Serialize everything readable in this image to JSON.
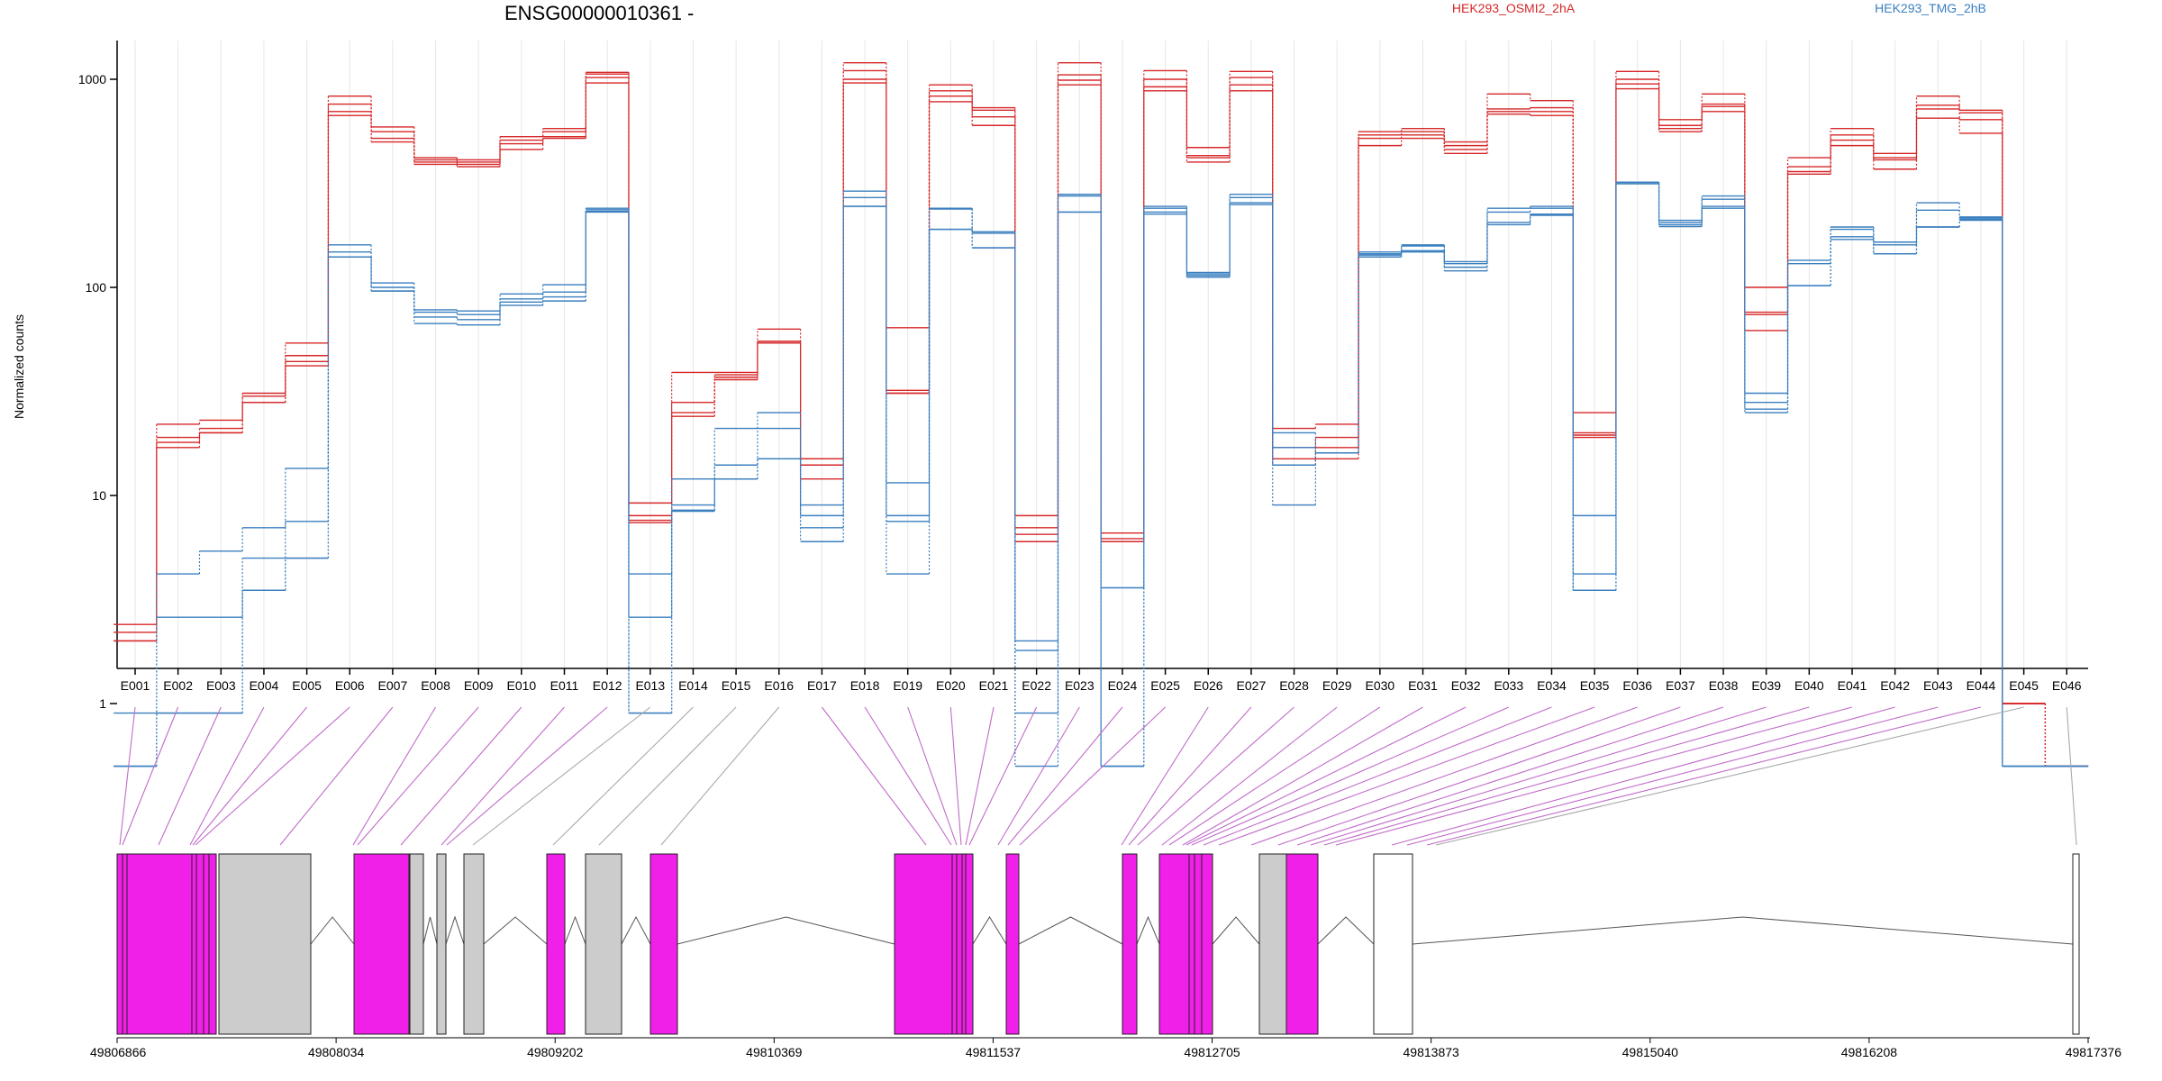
{
  "chart_data": {
    "type": "line",
    "title": "ENSG00000010361 -",
    "ylabel": "Normalized counts",
    "xlabel": "",
    "y_scale": "log",
    "grid": {
      "vertical": true,
      "horizontal": false
    },
    "legend": {
      "placement": "top-right",
      "entries": [
        {
          "name": "HEK293_OSMI2_2hA",
          "color": "#d62728"
        },
        {
          "name": "HEK293_TMG_2hB",
          "color": "#3a7fbf"
        }
      ]
    },
    "y_ticks": [
      {
        "value": 1,
        "label": "1"
      },
      {
        "value": 10,
        "label": "10"
      },
      {
        "value": 100,
        "label": "100"
      },
      {
        "value": 1000,
        "label": "1000"
      }
    ],
    "categories": [
      "E001",
      "E002",
      "E003",
      "E004",
      "E005",
      "E006",
      "E007",
      "E008",
      "E009",
      "E010",
      "E011",
      "E012",
      "E013",
      "E014",
      "E015",
      "E016",
      "E017",
      "E018",
      "E019",
      "E020",
      "E021",
      "E022",
      "E023",
      "E024",
      "E025",
      "E026",
      "E027",
      "E028",
      "E029",
      "E030",
      "E031",
      "E032",
      "E033",
      "E034",
      "E035",
      "E036",
      "E037",
      "E038",
      "E039",
      "E040",
      "E041",
      "E042",
      "E043",
      "E044",
      "E045",
      "E046"
    ],
    "series": [
      {
        "group": 0,
        "values": [
          2.4,
          22,
          23,
          31,
          54,
          830,
          590,
          420,
          410,
          530,
          580,
          1080,
          9.2,
          39,
          39,
          63,
          15,
          1200,
          64,
          940,
          730,
          8,
          1200,
          6.6,
          1100,
          470,
          1090,
          21,
          22,
          560,
          580,
          500,
          850,
          790,
          25,
          1090,
          640,
          850,
          100,
          420,
          580,
          440,
          830,
          710,
          1.0,
          0.5
        ]
      },
      {
        "group": 0,
        "values": [
          2.2,
          19,
          21,
          30,
          47,
          760,
          560,
          410,
          400,
          510,
          560,
          1060,
          8.0,
          28,
          38,
          55,
          15,
          1100,
          32,
          880,
          710,
          7,
          1050,
          6.2,
          1000,
          430,
          1020,
          17,
          19,
          540,
          560,
          480,
          720,
          730,
          20,
          1000,
          600,
          760,
          76,
          380,
          540,
          420,
          750,
          690,
          1.0,
          0.5
        ]
      },
      {
        "group": 0,
        "values": [
          2.0,
          18,
          20,
          28,
          44,
          700,
          520,
          400,
          390,
          490,
          530,
          1020,
          7.6,
          25,
          37,
          55,
          14,
          1000,
          31,
          830,
          660,
          6.5,
          990,
          6.0,
          920,
          420,
          940,
          15,
          17,
          520,
          540,
          460,
          700,
          700,
          19.5,
          950,
          580,
          740,
          74,
          360,
          510,
          410,
          720,
          640,
          1.0,
          0.5
        ]
      },
      {
        "group": 0,
        "values": [
          2.0,
          17,
          20,
          28,
          42,
          670,
          500,
          390,
          380,
          460,
          520,
          960,
          7.4,
          24,
          36,
          54,
          12,
          960,
          31,
          780,
          600,
          6.0,
          940,
          6.0,
          880,
          400,
          880,
          14,
          15,
          480,
          520,
          440,
          680,
          670,
          19,
          900,
          560,
          700,
          62,
          350,
          480,
          370,
          650,
          550,
          1.0,
          0.5
        ]
      },
      {
        "group": 1,
        "values": [
          0.5,
          4.2,
          5.4,
          7.0,
          13.5,
          160,
          105,
          78,
          77,
          93,
          103,
          240,
          4.2,
          12,
          21,
          25,
          9,
          290,
          11.5,
          240,
          185,
          2.0,
          280,
          3.6,
          245,
          118,
          280,
          20,
          16,
          148,
          160,
          133,
          240,
          245,
          8,
          320,
          210,
          275,
          31,
          135,
          195,
          165,
          255,
          218,
          0.5,
          0.5
        ]
      },
      {
        "group": 1,
        "values": [
          0.5,
          2.6,
          2.6,
          5.0,
          7.5,
          148,
          100,
          76,
          74,
          88,
          95,
          236,
          2.6,
          9.0,
          14,
          21,
          8,
          270,
          8,
          238,
          182,
          1.8,
          275,
          0.5,
          240,
          116,
          270,
          17,
          16,
          145,
          158,
          130,
          230,
          240,
          4.2,
          320,
          205,
          265,
          28,
          130,
          190,
          160,
          235,
          215,
          0.5,
          0.5
        ]
      },
      {
        "group": 1,
        "values": [
          0.9,
          0.9,
          0.9,
          3.5,
          5.0,
          140,
          96,
          72,
          70,
          85,
          90,
          232,
          0.9,
          8.5,
          12,
          15,
          7,
          245,
          7.5,
          190,
          155,
          0.9,
          230,
          0.5,
          230,
          114,
          255,
          14,
          16,
          143,
          150,
          125,
          205,
          225,
          3.5,
          315,
          200,
          245,
          26,
          102,
          175,
          145,
          195,
          212,
          0.5,
          0.5
        ]
      },
      {
        "group": 1,
        "values": [
          0.5,
          0.9,
          0.9,
          3.5,
          5.0,
          140,
          96,
          67,
          66,
          82,
          86,
          230,
          0.9,
          8.4,
          12,
          15,
          6,
          245,
          4.2,
          190,
          155,
          0.5,
          230,
          0.5,
          225,
          112,
          250,
          9,
          16,
          140,
          148,
          120,
          200,
          222,
          3.5,
          315,
          196,
          240,
          25,
          102,
          170,
          145,
          195,
          210,
          0.5,
          0.5
        ]
      }
    ],
    "genomic_axis": {
      "ticks": [
        "49806866",
        "49808034",
        "49809202",
        "49810369",
        "49811537",
        "49812705",
        "49813873",
        "49815040",
        "49816208",
        "49817376"
      ]
    }
  }
}
